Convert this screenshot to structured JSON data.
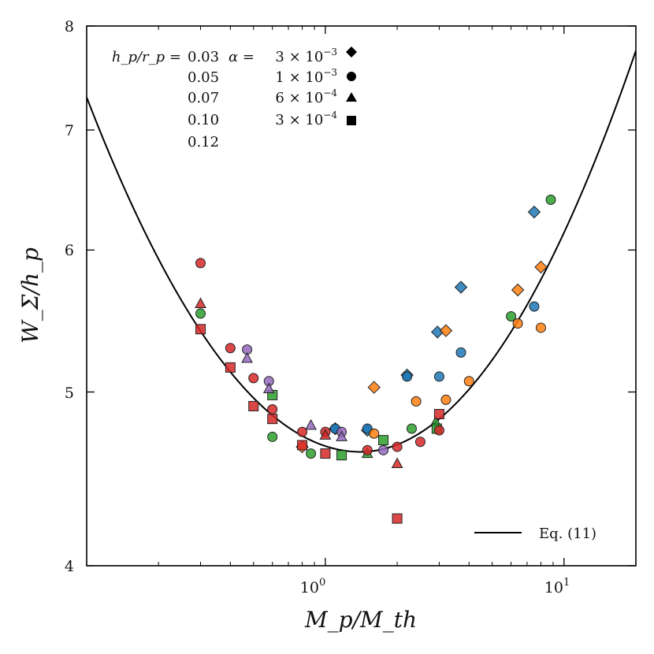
{
  "chart_data": {
    "type": "scatter",
    "title": "",
    "xlabel": "M_p/M_th",
    "ylabel": "W_Σ/h_p",
    "xscale": "log",
    "yscale": "log",
    "xlim": [
      0.1,
      20
    ],
    "ylim": [
      4,
      8
    ],
    "x_ticks": [
      {
        "value": 1,
        "label": "10^0",
        "base": "10",
        "exp": "0"
      },
      {
        "value": 10,
        "label": "10^1",
        "base": "10",
        "exp": "1"
      }
    ],
    "y_ticks": [
      {
        "value": 4,
        "label": "4"
      },
      {
        "value": 5,
        "label": "5"
      },
      {
        "value": 6,
        "label": "6"
      },
      {
        "value": 7,
        "label": "7"
      },
      {
        "value": 8,
        "label": "8"
      }
    ],
    "legend_placement": "top-left",
    "legend": {
      "aspect_label": "h_p/r_p =",
      "aspect_ratios": [
        {
          "value": "0.03",
          "color": "#1f77b4"
        },
        {
          "value": "0.05",
          "color": "#ff7f0e"
        },
        {
          "value": "0.07",
          "color": "#2ca02c"
        },
        {
          "value": "0.10",
          "color": "#d62728"
        },
        {
          "value": "0.12",
          "color": "#9467bd"
        }
      ],
      "alpha_prefix": "α =",
      "alphas": [
        {
          "mant": "3",
          "exp": "−3",
          "marker": "diamond"
        },
        {
          "mant": "1",
          "exp": "−3",
          "marker": "circle"
        },
        {
          "mant": "6",
          "exp": "−4",
          "marker": "triangle"
        },
        {
          "mant": "3",
          "exp": "−4",
          "marker": "square"
        }
      ]
    },
    "line_series": [
      {
        "name": "Eq. (11)",
        "color": "#000000",
        "form": "parabola_in_log_space",
        "min_x": 1.4,
        "min_y": 4.63,
        "anchors": [
          {
            "x": 0.1,
            "y": 7.3
          },
          {
            "x": 20,
            "y": 7.75
          }
        ]
      }
    ],
    "series": [
      {
        "name": "0.03",
        "color": "#1f77b4",
        "points": [
          {
            "x": 1.1,
            "y": 4.77,
            "m": "diamond"
          },
          {
            "x": 1.5,
            "y": 4.76,
            "m": "diamond"
          },
          {
            "x": 2.2,
            "y": 5.11,
            "m": "diamond"
          },
          {
            "x": 2.95,
            "y": 5.4,
            "m": "diamond"
          },
          {
            "x": 3.7,
            "y": 5.72,
            "m": "diamond"
          },
          {
            "x": 7.5,
            "y": 6.3,
            "m": "diamond"
          },
          {
            "x": 1.1,
            "y": 4.77,
            "m": "circle"
          },
          {
            "x": 1.5,
            "y": 4.77,
            "m": "circle"
          },
          {
            "x": 2.2,
            "y": 5.1,
            "m": "circle"
          },
          {
            "x": 3.0,
            "y": 5.1,
            "m": "circle"
          },
          {
            "x": 3.7,
            "y": 5.26,
            "m": "circle"
          },
          {
            "x": 7.5,
            "y": 5.58,
            "m": "circle"
          }
        ]
      },
      {
        "name": "0.05",
        "color": "#ff7f0e",
        "points": [
          {
            "x": 0.8,
            "y": 4.66,
            "m": "diamond"
          },
          {
            "x": 1.6,
            "y": 5.03,
            "m": "diamond"
          },
          {
            "x": 3.2,
            "y": 5.41,
            "m": "diamond"
          },
          {
            "x": 6.4,
            "y": 5.7,
            "m": "diamond"
          },
          {
            "x": 8.0,
            "y": 5.87,
            "m": "diamond"
          },
          {
            "x": 1.6,
            "y": 4.74,
            "m": "circle"
          },
          {
            "x": 2.4,
            "y": 4.94,
            "m": "circle"
          },
          {
            "x": 3.2,
            "y": 4.95,
            "m": "circle"
          },
          {
            "x": 4.0,
            "y": 5.07,
            "m": "circle"
          },
          {
            "x": 6.4,
            "y": 5.46,
            "m": "circle"
          },
          {
            "x": 8.0,
            "y": 5.43,
            "m": "circle"
          }
        ]
      },
      {
        "name": "0.07",
        "color": "#2ca02c",
        "points": [
          {
            "x": 0.3,
            "y": 5.53,
            "m": "circle"
          },
          {
            "x": 0.6,
            "y": 4.72,
            "m": "circle"
          },
          {
            "x": 0.87,
            "y": 4.62,
            "m": "circle"
          },
          {
            "x": 2.3,
            "y": 4.77,
            "m": "circle"
          },
          {
            "x": 6.0,
            "y": 5.51,
            "m": "circle"
          },
          {
            "x": 8.8,
            "y": 6.4,
            "m": "circle"
          },
          {
            "x": 1.5,
            "y": 4.62,
            "m": "triangle"
          },
          {
            "x": 2.9,
            "y": 4.81,
            "m": "triangle"
          },
          {
            "x": 0.6,
            "y": 4.98,
            "m": "square"
          },
          {
            "x": 1.17,
            "y": 4.61,
            "m": "square"
          },
          {
            "x": 1.75,
            "y": 4.7,
            "m": "square"
          },
          {
            "x": 2.93,
            "y": 4.77,
            "m": "square"
          }
        ]
      },
      {
        "name": "0.10",
        "color": "#d62728",
        "points": [
          {
            "x": 0.3,
            "y": 5.9,
            "m": "circle"
          },
          {
            "x": 0.4,
            "y": 5.29,
            "m": "circle"
          },
          {
            "x": 0.5,
            "y": 5.09,
            "m": "circle"
          },
          {
            "x": 0.6,
            "y": 4.89,
            "m": "circle"
          },
          {
            "x": 0.8,
            "y": 4.75,
            "m": "circle"
          },
          {
            "x": 1.0,
            "y": 4.75,
            "m": "circle"
          },
          {
            "x": 1.5,
            "y": 4.64,
            "m": "circle"
          },
          {
            "x": 2.0,
            "y": 4.66,
            "m": "circle"
          },
          {
            "x": 2.5,
            "y": 4.69,
            "m": "circle"
          },
          {
            "x": 3.0,
            "y": 4.76,
            "m": "circle"
          },
          {
            "x": 0.3,
            "y": 5.6,
            "m": "triangle"
          },
          {
            "x": 1.0,
            "y": 4.73,
            "m": "triangle"
          },
          {
            "x": 2.0,
            "y": 4.56,
            "m": "triangle"
          },
          {
            "x": 0.3,
            "y": 5.42,
            "m": "square"
          },
          {
            "x": 0.4,
            "y": 5.16,
            "m": "square"
          },
          {
            "x": 0.5,
            "y": 4.91,
            "m": "square"
          },
          {
            "x": 0.6,
            "y": 4.83,
            "m": "square"
          },
          {
            "x": 0.8,
            "y": 4.67,
            "m": "square"
          },
          {
            "x": 1.0,
            "y": 4.62,
            "m": "square"
          },
          {
            "x": 2.0,
            "y": 4.25,
            "m": "square"
          },
          {
            "x": 3.0,
            "y": 4.86,
            "m": "square"
          }
        ]
      },
      {
        "name": "0.12",
        "color": "#9467bd",
        "points": [
          {
            "x": 0.47,
            "y": 5.28,
            "m": "circle"
          },
          {
            "x": 0.58,
            "y": 5.07,
            "m": "circle"
          },
          {
            "x": 1.17,
            "y": 4.75,
            "m": "circle"
          },
          {
            "x": 1.75,
            "y": 4.64,
            "m": "circle"
          },
          {
            "x": 0.47,
            "y": 5.22,
            "m": "triangle"
          },
          {
            "x": 0.58,
            "y": 5.02,
            "m": "triangle"
          },
          {
            "x": 0.87,
            "y": 4.79,
            "m": "triangle"
          },
          {
            "x": 1.17,
            "y": 4.72,
            "m": "triangle"
          }
        ]
      }
    ]
  }
}
